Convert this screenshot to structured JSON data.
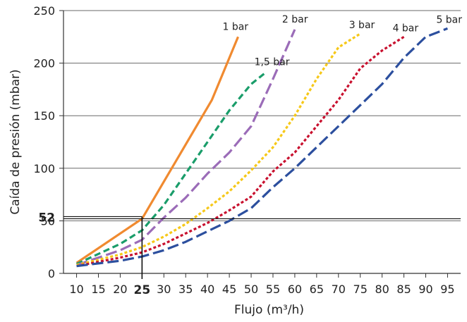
{
  "chart_data": {
    "type": "line",
    "xlabel": "Flujo (m³/h)",
    "ylabel": "Caída de presión (mbar)",
    "xlim": [
      10,
      95
    ],
    "ylim": [
      0,
      250
    ],
    "x_ticks": [
      10,
      15,
      20,
      25,
      30,
      35,
      40,
      45,
      50,
      55,
      60,
      65,
      70,
      75,
      80,
      85,
      90,
      95
    ],
    "y_ticks": [
      0,
      50,
      100,
      150,
      200,
      250
    ],
    "grid": "horizontal",
    "highlight": {
      "x": 25,
      "y": 52,
      "x_label": "25",
      "y_label": "52"
    },
    "series": [
      {
        "name": "1 bar",
        "color": "#f08a30",
        "dash": "solid",
        "x": [
          10,
          25,
          41,
          47
        ],
        "y": [
          10,
          52,
          165,
          225
        ]
      },
      {
        "name": "1,5 bar",
        "color": "#1a9d6a",
        "dash": "dashed",
        "x": [
          10,
          20,
          25,
          30,
          35,
          40,
          45,
          50,
          53
        ],
        "y": [
          9,
          28,
          41,
          65,
          95,
          125,
          155,
          180,
          190
        ]
      },
      {
        "name": "2 bar",
        "color": "#9b6cb8",
        "dash": "longdash",
        "x": [
          10,
          20,
          25,
          30,
          35,
          40,
          45,
          50,
          55,
          60
        ],
        "y": [
          8,
          22,
          32,
          53,
          72,
          95,
          115,
          140,
          185,
          232
        ]
      },
      {
        "name": "3 bar",
        "color": "#f6c818",
        "dash": "dotted",
        "x": [
          10,
          20,
          25,
          30,
          35,
          40,
          45,
          50,
          55,
          60,
          65,
          70,
          75
        ],
        "y": [
          8,
          18,
          25,
          35,
          47,
          62,
          78,
          98,
          120,
          150,
          185,
          215,
          228
        ]
      },
      {
        "name": "4 bar",
        "color": "#c8102e",
        "dash": "dotted",
        "x": [
          10,
          20,
          25,
          30,
          35,
          40,
          45,
          50,
          55,
          60,
          65,
          70,
          75,
          80,
          85
        ],
        "y": [
          7,
          15,
          20,
          28,
          38,
          48,
          60,
          73,
          97,
          115,
          140,
          165,
          195,
          212,
          225
        ]
      },
      {
        "name": "5 bar",
        "color": "#2c4f9e",
        "dash": "longdash",
        "x": [
          10,
          20,
          25,
          30,
          35,
          40,
          45,
          50,
          55,
          60,
          65,
          70,
          75,
          80,
          85,
          90,
          95
        ],
        "y": [
          7,
          12,
          16,
          22,
          30,
          40,
          50,
          62,
          82,
          100,
          120,
          140,
          160,
          180,
          205,
          225,
          233
        ]
      }
    ]
  }
}
